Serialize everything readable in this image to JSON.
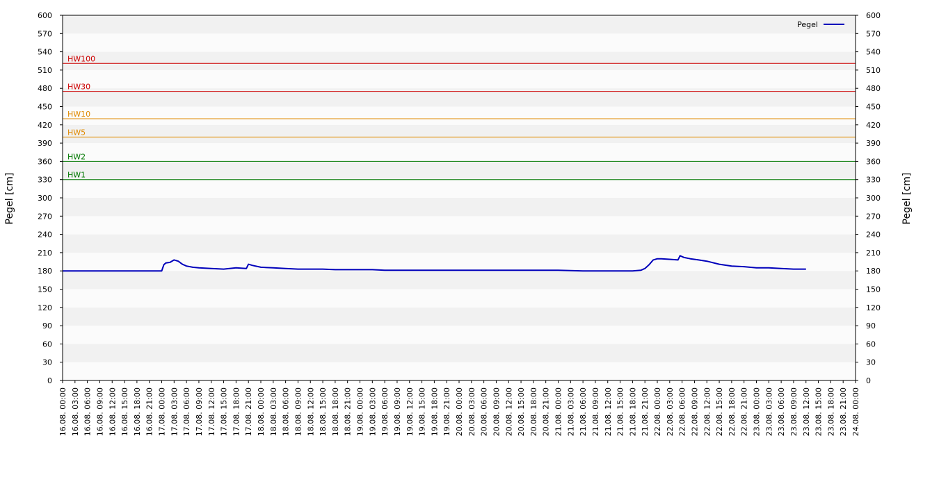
{
  "chart_data": {
    "type": "line",
    "ylabel_left": "Pegel [cm]",
    "ylabel_right": "Pegel [cm]",
    "ylim": [
      0,
      600
    ],
    "y_ticks": [
      0,
      30,
      60,
      90,
      120,
      150,
      180,
      210,
      240,
      270,
      300,
      330,
      360,
      390,
      420,
      450,
      480,
      510,
      540,
      570,
      600
    ],
    "x_tick_labels": [
      "16.08. 00:00",
      "16.08. 03:00",
      "16.08. 06:00",
      "16.08. 09:00",
      "16.08. 12:00",
      "16.08. 15:00",
      "16.08. 18:00",
      "16.08. 21:00",
      "17.08. 00:00",
      "17.08. 03:00",
      "17.08. 06:00",
      "17.08. 09:00",
      "17.08. 12:00",
      "17.08. 15:00",
      "17.08. 18:00",
      "17.08. 21:00",
      "18.08. 00:00",
      "18.08. 03:00",
      "18.08. 06:00",
      "18.08. 09:00",
      "18.08. 12:00",
      "18.08. 15:00",
      "18.08. 18:00",
      "18.08. 21:00",
      "19.08. 00:00",
      "19.08. 03:00",
      "19.08. 06:00",
      "19.08. 09:00",
      "19.08. 12:00",
      "19.08. 15:00",
      "19.08. 18:00",
      "19.08. 21:00",
      "20.08. 00:00",
      "20.08. 03:00",
      "20.08. 06:00",
      "20.08. 09:00",
      "20.08. 12:00",
      "20.08. 15:00",
      "20.08. 18:00",
      "20.08. 21:00",
      "21.08. 00:00",
      "21.08. 03:00",
      "21.08. 06:00",
      "21.08. 09:00",
      "21.08. 12:00",
      "21.08. 15:00",
      "21.08. 18:00",
      "21.08. 21:00",
      "22.08. 00:00",
      "22.08. 03:00",
      "22.08. 06:00",
      "22.08. 09:00",
      "22.08. 12:00",
      "22.08. 15:00",
      "22.08. 18:00",
      "22.08. 21:00",
      "23.08. 00:00",
      "23.08. 03:00",
      "23.08. 06:00",
      "23.08. 09:00",
      "23.08. 12:00",
      "23.08. 15:00",
      "23.08. 18:00",
      "23.08. 21:00",
      "24.08. 00:00"
    ],
    "thresholds": [
      {
        "label": "HW100",
        "value": 521,
        "color": "#cc0000"
      },
      {
        "label": "HW30",
        "value": 475,
        "color": "#cc0000"
      },
      {
        "label": "HW10",
        "value": 430,
        "color": "#e08a00"
      },
      {
        "label": "HW5",
        "value": 400,
        "color": "#e08a00"
      },
      {
        "label": "HW2",
        "value": 360,
        "color": "#007700"
      },
      {
        "label": "HW1",
        "value": 330,
        "color": "#007700"
      }
    ],
    "legend": {
      "position": "top-right"
    },
    "series": [
      {
        "name": "Pegel",
        "color": "#0000bb",
        "points": [
          [
            "16.08. 00:00",
            180
          ],
          [
            "16.08. 12:00",
            180
          ],
          [
            "16.08. 23:00",
            180
          ],
          [
            "17.08. 00:00",
            180
          ],
          [
            "17.08. 00:30",
            190
          ],
          [
            "17.08. 01:00",
            193
          ],
          [
            "17.08. 02:00",
            194
          ],
          [
            "17.08. 03:00",
            198
          ],
          [
            "17.08. 04:00",
            196
          ],
          [
            "17.08. 05:00",
            191
          ],
          [
            "17.08. 06:00",
            188
          ],
          [
            "17.08. 07:30",
            186
          ],
          [
            "17.08. 09:00",
            185
          ],
          [
            "17.08. 12:00",
            184
          ],
          [
            "17.08. 15:00",
            183
          ],
          [
            "17.08. 18:00",
            185
          ],
          [
            "17.08. 20:30",
            184
          ],
          [
            "17.08. 21:00",
            191
          ],
          [
            "17.08. 22:00",
            189
          ],
          [
            "18.08. 00:00",
            186
          ],
          [
            "18.08. 03:00",
            185
          ],
          [
            "18.08. 06:00",
            184
          ],
          [
            "18.08. 09:00",
            183
          ],
          [
            "18.08. 12:00",
            183
          ],
          [
            "18.08. 15:00",
            183
          ],
          [
            "18.08. 18:00",
            182
          ],
          [
            "18.08. 21:00",
            182
          ],
          [
            "19.08. 00:00",
            182
          ],
          [
            "19.08. 03:00",
            182
          ],
          [
            "19.08. 06:00",
            181
          ],
          [
            "19.08. 09:00",
            181
          ],
          [
            "19.08. 12:00",
            181
          ],
          [
            "19.08. 15:00",
            181
          ],
          [
            "19.08. 18:00",
            181
          ],
          [
            "19.08. 21:00",
            181
          ],
          [
            "20.08. 00:00",
            181
          ],
          [
            "20.08. 06:00",
            181
          ],
          [
            "20.08. 12:00",
            181
          ],
          [
            "20.08. 18:00",
            181
          ],
          [
            "21.08. 00:00",
            181
          ],
          [
            "21.08. 06:00",
            180
          ],
          [
            "21.08. 12:00",
            180
          ],
          [
            "21.08. 18:00",
            180
          ],
          [
            "21.08. 20:00",
            181
          ],
          [
            "21.08. 21:00",
            184
          ],
          [
            "21.08. 22:00",
            190
          ],
          [
            "21.08. 23:00",
            198
          ],
          [
            "22.08. 00:00",
            200
          ],
          [
            "22.08. 01:00",
            200
          ],
          [
            "22.08. 03:00",
            199
          ],
          [
            "22.08. 05:00",
            198
          ],
          [
            "22.08. 05:30",
            205
          ],
          [
            "22.08. 06:30",
            202
          ],
          [
            "22.08. 08:00",
            200
          ],
          [
            "22.08. 10:00",
            198
          ],
          [
            "22.08. 12:00",
            196
          ],
          [
            "22.08. 15:00",
            191
          ],
          [
            "22.08. 18:00",
            188
          ],
          [
            "22.08. 21:00",
            187
          ],
          [
            "23.08. 00:00",
            185
          ],
          [
            "23.08. 03:00",
            185
          ],
          [
            "23.08. 06:00",
            184
          ],
          [
            "23.08. 09:00",
            183
          ],
          [
            "23.08. 12:00",
            183
          ]
        ]
      }
    ]
  }
}
